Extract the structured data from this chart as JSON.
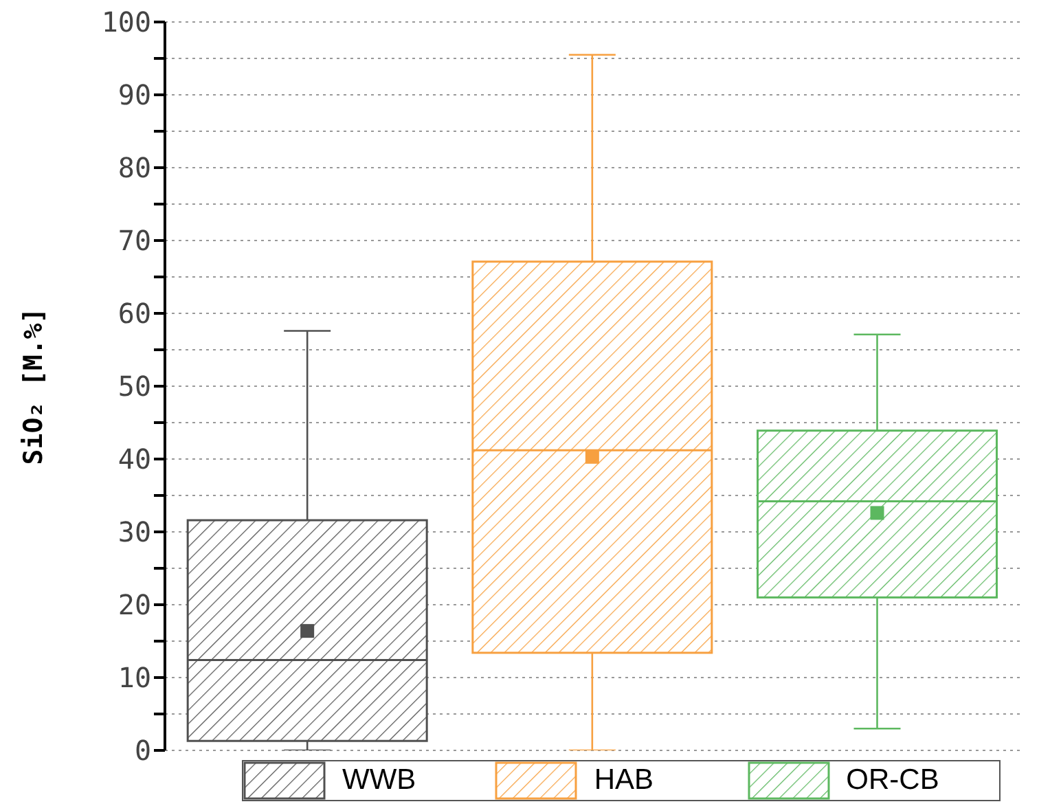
{
  "chart_data": {
    "type": "box",
    "ylabel": "SiO₂ [M.%]",
    "categories": [
      null,
      null,
      null
    ],
    "ylim": [
      0,
      100
    ],
    "yticks": [
      0,
      {
        "value": 5,
        "label": null
      },
      10,
      {
        "value": 15,
        "label": null
      },
      20,
      {
        "value": 25,
        "label": null
      },
      30,
      {
        "value": 35,
        "label": null
      },
      40,
      {
        "value": 45,
        "label": null
      },
      50,
      {
        "value": 55,
        "label": null
      },
      60,
      {
        "value": 65,
        "label": null
      },
      70,
      {
        "value": 75,
        "label": null
      },
      80,
      {
        "value": 85,
        "label": null
      },
      90,
      {
        "value": 95,
        "label": null
      },
      100
    ],
    "grid": "y",
    "legend": "bottom",
    "marker": "square",
    "series": [
      {
        "name": "WWB",
        "color": "#505050",
        "boxes": [
          {
            "low": 0,
            "q1": 1.3,
            "median": 12.4,
            "q3": 31.6,
            "high": 57.6,
            "mean": 16.4
          },
          null,
          null
        ]
      },
      {
        "name": "HAB",
        "color": "#f7a040",
        "boxes": [
          null,
          {
            "low": 0,
            "q1": 13.4,
            "median": 41.2,
            "q3": 67.1,
            "high": 95.5,
            "mean": 40.3
          },
          null
        ]
      },
      {
        "name": "OR-CB",
        "color": "#5cb85f",
        "boxes": [
          null,
          null,
          {
            "low": 3,
            "q1": 21,
            "median": 34.2,
            "q3": 43.9,
            "high": 57.1,
            "mean": 32.6
          }
        ]
      }
    ]
  }
}
